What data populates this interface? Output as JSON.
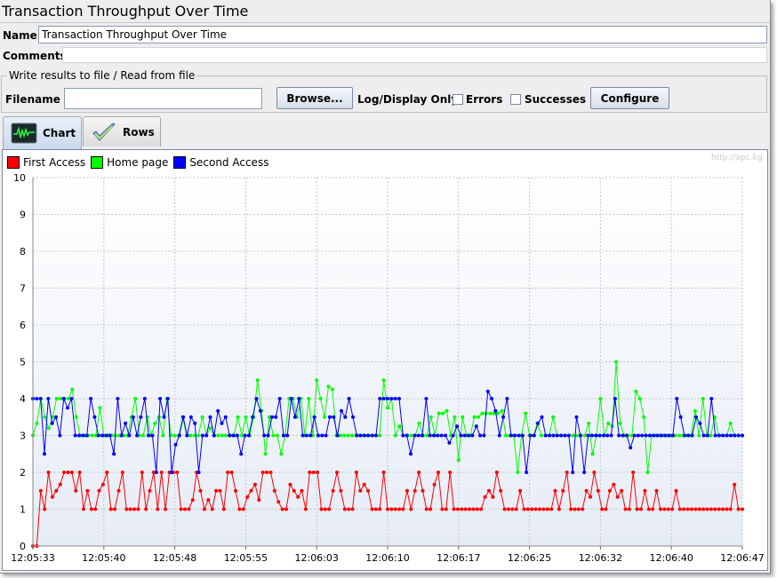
{
  "window": {
    "title": "Transaction Throughput Over Time"
  },
  "form": {
    "name_label": "Name:",
    "name_value": "Transaction Throughput Over Time",
    "comments_label": "Comments:",
    "comments_value": ""
  },
  "file_group": {
    "legend": "Write results to file / Read from file",
    "filename_label": "Filename",
    "filename_value": "",
    "browse_label": "Browse...",
    "log_display_label": "Log/Display Only:",
    "errors_label": "Errors",
    "errors_checked": false,
    "successes_label": "Successes",
    "successes_checked": false,
    "configure_label": "Configure"
  },
  "tabs": [
    {
      "label": "Chart",
      "icon": "chart-icon",
      "selected": true
    },
    {
      "label": "Rows",
      "icon": "checkmark-icon",
      "selected": false
    }
  ],
  "watermark": "http://apc.kg",
  "colors": {
    "first": "#ff0000",
    "home": "#00ff00",
    "second": "#0000ff"
  },
  "chart_data": {
    "type": "line",
    "ylim": [
      0,
      10
    ],
    "yticks": [
      "0",
      "1",
      "2",
      "3",
      "4",
      "5",
      "6",
      "7",
      "8",
      "9",
      "10"
    ],
    "xticks": [
      "12:05:33",
      "12:05:40",
      "12:05:48",
      "12:05:55",
      "12:06:03",
      "12:06:10",
      "12:06:17",
      "12:06:25",
      "12:06:32",
      "12:06:40",
      "12:06:47"
    ],
    "grid": true,
    "legend_position": "top-left",
    "series": [
      {
        "name": "First Access",
        "color": "#ff0000",
        "values": [
          0,
          0,
          1.5,
          1,
          2,
          1.33,
          1.5,
          1.67,
          2,
          2,
          2,
          1.5,
          2,
          1,
          1.5,
          1,
          1,
          1.5,
          1.67,
          2,
          1,
          1,
          1.5,
          2,
          1,
          1,
          1,
          1,
          2,
          1,
          1.5,
          2,
          1,
          2,
          1,
          2,
          2,
          2,
          1,
          1,
          1,
          1.25,
          2,
          1.5,
          1,
          1.25,
          1,
          1.5,
          1.5,
          1,
          2,
          2,
          1.5,
          1,
          1,
          1.33,
          1.5,
          1.67,
          1.25,
          2,
          2,
          2,
          1.5,
          1.2,
          1,
          1,
          1.67,
          1.5,
          1.33,
          1.5,
          1,
          2,
          2,
          2,
          1,
          1,
          1,
          1.5,
          2,
          1.5,
          1,
          1,
          1,
          2,
          1.5,
          1.67,
          1.5,
          1,
          1,
          1,
          2,
          1,
          1,
          1,
          1,
          1,
          1.5,
          1,
          1.5,
          2,
          1.5,
          1,
          1,
          1.67,
          2,
          1,
          1,
          2,
          1,
          1,
          1,
          1,
          1,
          1,
          1,
          1,
          1.33,
          1.5,
          1.33,
          2,
          1.5,
          1,
          1,
          1,
          1,
          1.5,
          1,
          1,
          1,
          1,
          1,
          1,
          1,
          1,
          1.5,
          1,
          1.5,
          2,
          1,
          1,
          1,
          1,
          1.5,
          1.33,
          2,
          1.5,
          1,
          1,
          1.5,
          1.67,
          1.33,
          1.5,
          1,
          1,
          2,
          1,
          1,
          1.5,
          1,
          1,
          1.5,
          1,
          1,
          1,
          1,
          1.5,
          1,
          1,
          1,
          1,
          1,
          1,
          1,
          1,
          1,
          1,
          1,
          1,
          1,
          1,
          1.67,
          1,
          1
        ]
      },
      {
        "name": "Home page",
        "color": "#00ff00",
        "values": [
          3,
          3.33,
          4,
          3.5,
          3.2,
          3.5,
          4,
          4,
          4,
          4,
          4.25,
          3.5,
          3,
          3,
          3,
          3,
          3,
          3.75,
          3,
          3,
          3,
          3,
          3,
          3,
          3,
          3.5,
          4,
          3,
          3,
          3.5,
          3,
          3.33,
          3.5,
          3,
          4,
          3,
          3,
          3,
          3.5,
          3,
          3,
          3,
          3,
          3.5,
          3,
          3.2,
          3,
          3,
          3,
          3,
          3,
          3,
          3.5,
          3,
          3.5,
          3,
          3.5,
          4.5,
          3.67,
          2.5,
          3.5,
          3,
          3,
          2.5,
          3,
          4,
          4,
          3.5,
          4,
          3,
          4,
          3,
          4.5,
          4,
          3.5,
          4.33,
          4.25,
          3,
          3,
          3,
          3,
          3,
          3,
          3,
          3,
          3,
          3,
          3,
          3,
          4.5,
          3.75,
          4,
          3,
          3.25,
          3,
          3,
          3,
          3,
          3.33,
          3,
          3,
          3.5,
          3,
          3.6,
          3.6,
          3.67,
          3,
          3.5,
          2.33,
          3.5,
          3,
          3,
          3.5,
          3.5,
          3.6,
          3.6,
          3.6,
          3.6,
          3.6,
          3.67,
          3,
          3,
          3,
          2,
          3,
          3.6,
          3,
          3,
          3.33,
          3,
          3,
          3,
          3.5,
          3,
          3,
          3,
          3,
          3,
          3,
          3,
          3,
          3.33,
          2.5,
          3,
          4,
          3,
          3.33,
          3.25,
          5,
          3.33,
          3,
          3,
          3,
          4.2,
          4,
          3.5,
          2,
          3,
          3,
          3,
          3,
          3,
          3,
          3,
          3,
          3,
          3,
          3,
          3.67,
          3,
          4,
          3,
          3,
          3.5,
          3,
          3,
          3,
          3.33,
          3,
          3,
          3
        ]
      },
      {
        "name": "Second Access",
        "color": "#0000ff",
        "values": [
          4,
          4,
          4,
          2.5,
          4,
          3.33,
          3.5,
          3,
          4,
          3.75,
          4,
          3,
          3,
          3,
          3,
          4,
          3.5,
          3,
          3,
          3,
          3,
          2.5,
          4,
          3,
          3.33,
          3,
          3.5,
          3,
          3.5,
          4,
          3,
          3,
          2,
          4,
          3.5,
          4,
          2,
          2.75,
          3,
          3.5,
          3,
          3.5,
          3.33,
          2,
          3,
          3,
          3.5,
          3,
          3.67,
          3.33,
          3.5,
          3,
          3,
          3,
          2.5,
          3,
          3,
          3.5,
          4,
          3.67,
          3,
          3,
          3.5,
          3.5,
          4,
          3,
          3,
          4,
          3.5,
          4,
          3,
          3,
          3,
          3.5,
          3,
          3,
          3,
          3.5,
          3.5,
          3,
          3.67,
          3.5,
          4,
          3.5,
          3,
          3,
          3,
          3,
          3,
          3,
          4,
          4,
          4,
          4,
          4,
          4,
          3,
          3,
          2.5,
          3,
          3,
          3,
          4,
          3,
          3,
          3,
          3,
          3,
          2.8,
          3,
          3.25,
          3,
          3,
          3,
          3,
          3.25,
          3,
          3,
          4.2,
          4,
          3.67,
          3,
          3.5,
          4,
          3,
          3,
          3,
          3,
          2,
          3,
          3,
          3.33,
          3.5,
          3,
          3,
          3,
          3,
          3,
          3,
          3,
          2,
          3.5,
          3,
          2,
          3,
          3,
          3,
          3,
          3,
          3,
          3,
          4,
          3,
          3,
          3,
          2.67,
          3,
          3,
          3,
          3,
          3,
          3,
          3,
          3,
          3,
          3,
          3,
          4,
          3.5,
          3,
          3,
          3,
          3.5,
          3.33,
          3,
          3,
          4,
          3,
          3,
          3,
          3,
          3,
          3,
          3,
          3
        ]
      }
    ]
  }
}
